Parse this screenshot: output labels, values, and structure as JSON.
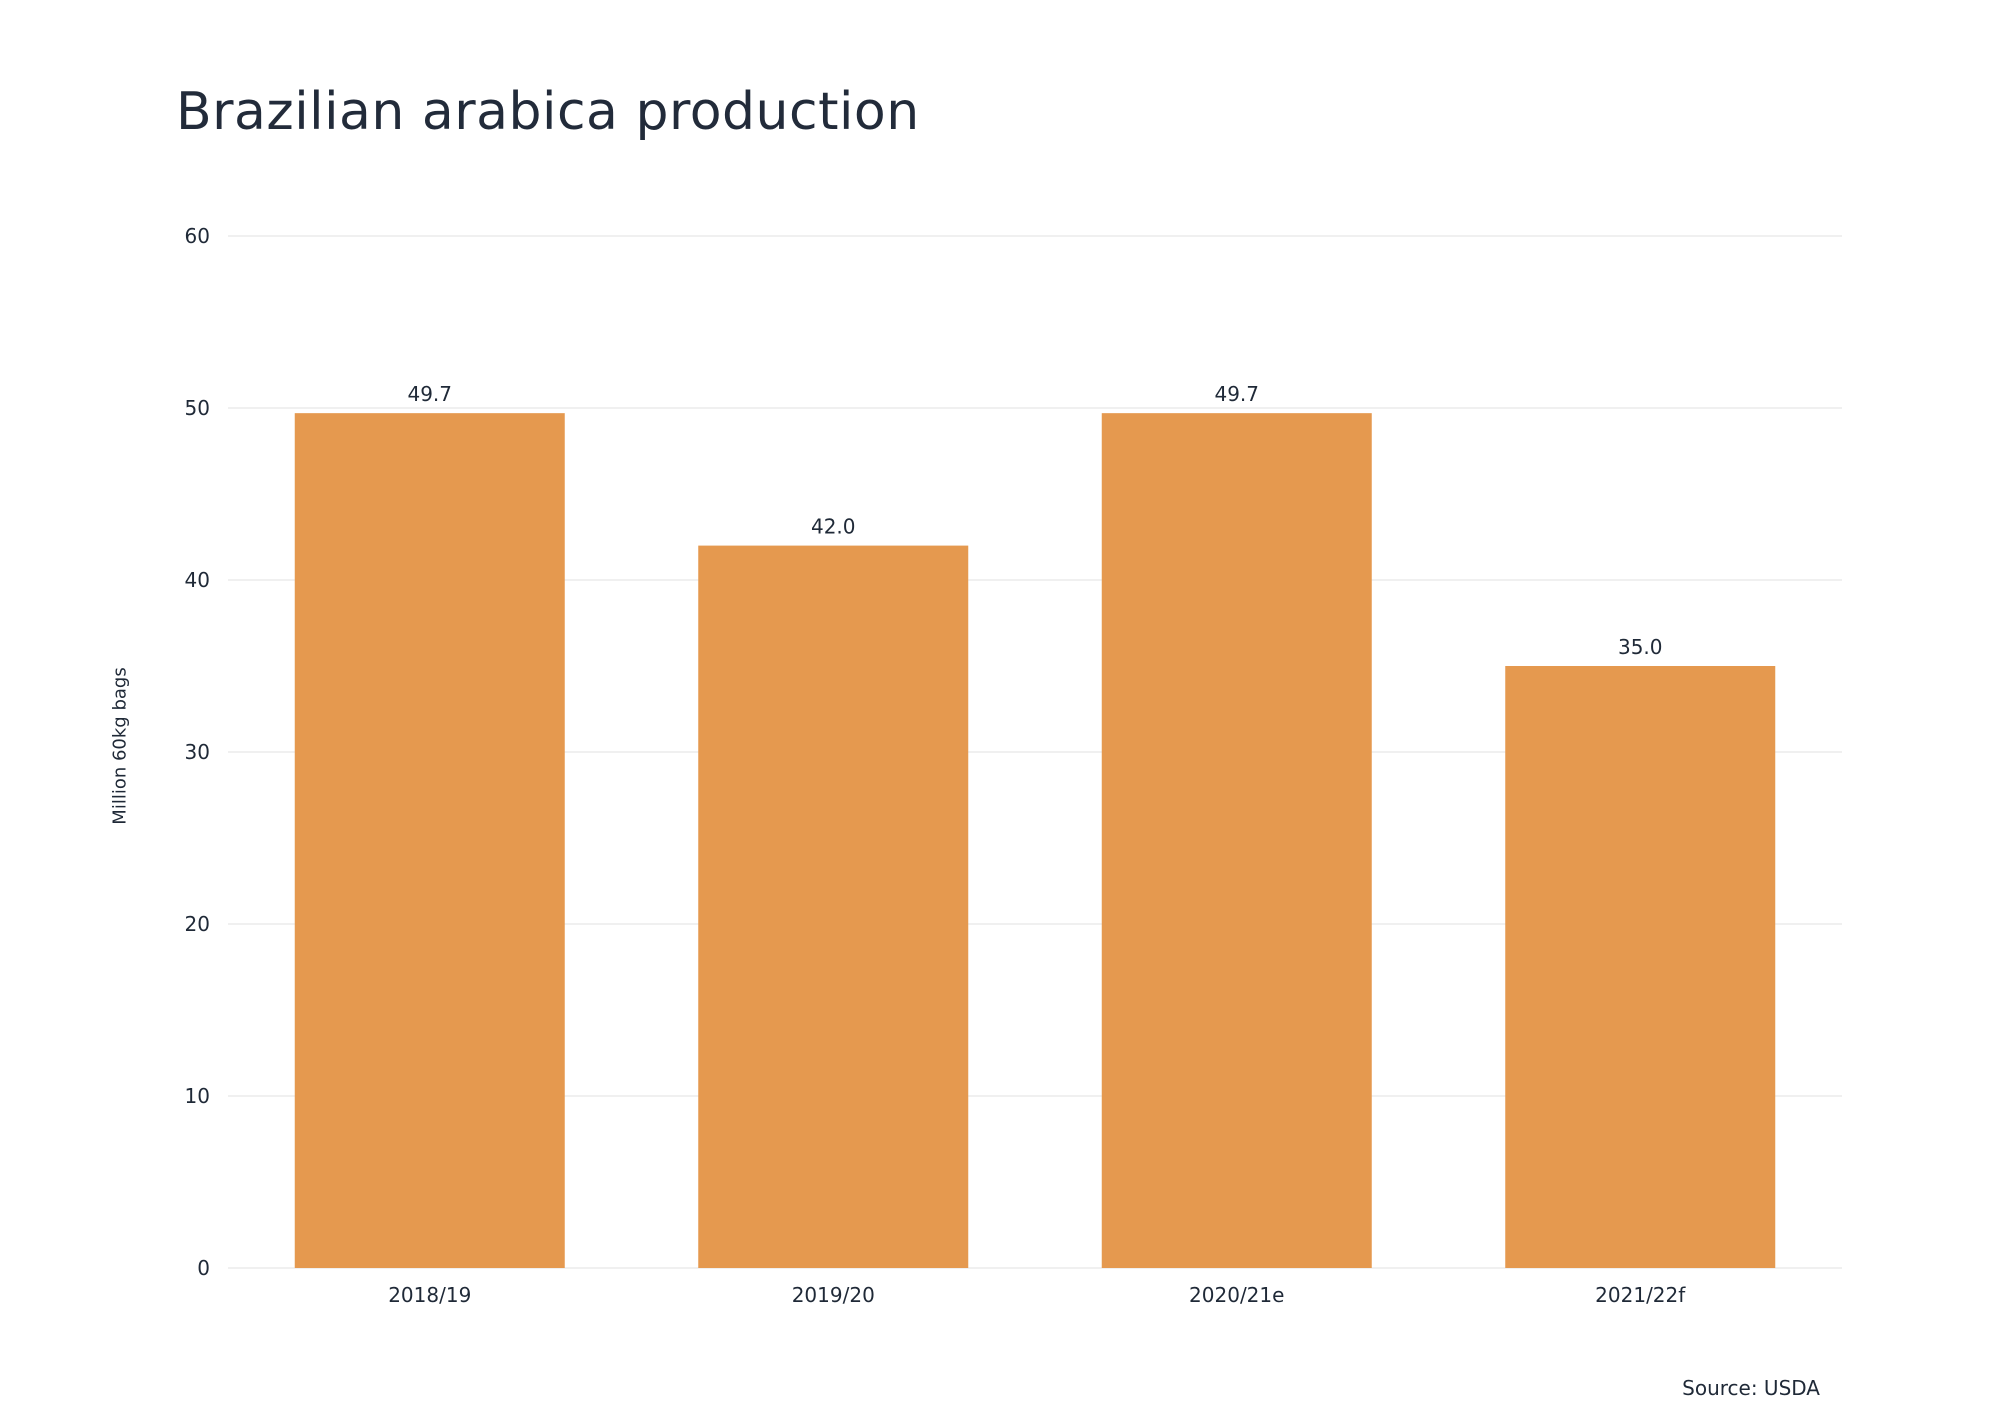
{
  "chart_data": {
    "type": "bar",
    "title": "Brazilian arabica production",
    "ylabel": "Million 60kg bags",
    "xlabel": "",
    "categories": [
      "2018/19",
      "2019/20",
      "2020/21e",
      "2021/22f"
    ],
    "values": [
      49.7,
      42.0,
      49.7,
      35.0
    ],
    "value_labels": [
      "49.7",
      "42.0",
      "49.7",
      "35.0"
    ],
    "ylim": [
      0,
      60
    ],
    "yticks": [
      0,
      10,
      20,
      30,
      40,
      50,
      60
    ],
    "grid": true,
    "bar_color": "#E5994F",
    "source": "Source: USDA"
  }
}
